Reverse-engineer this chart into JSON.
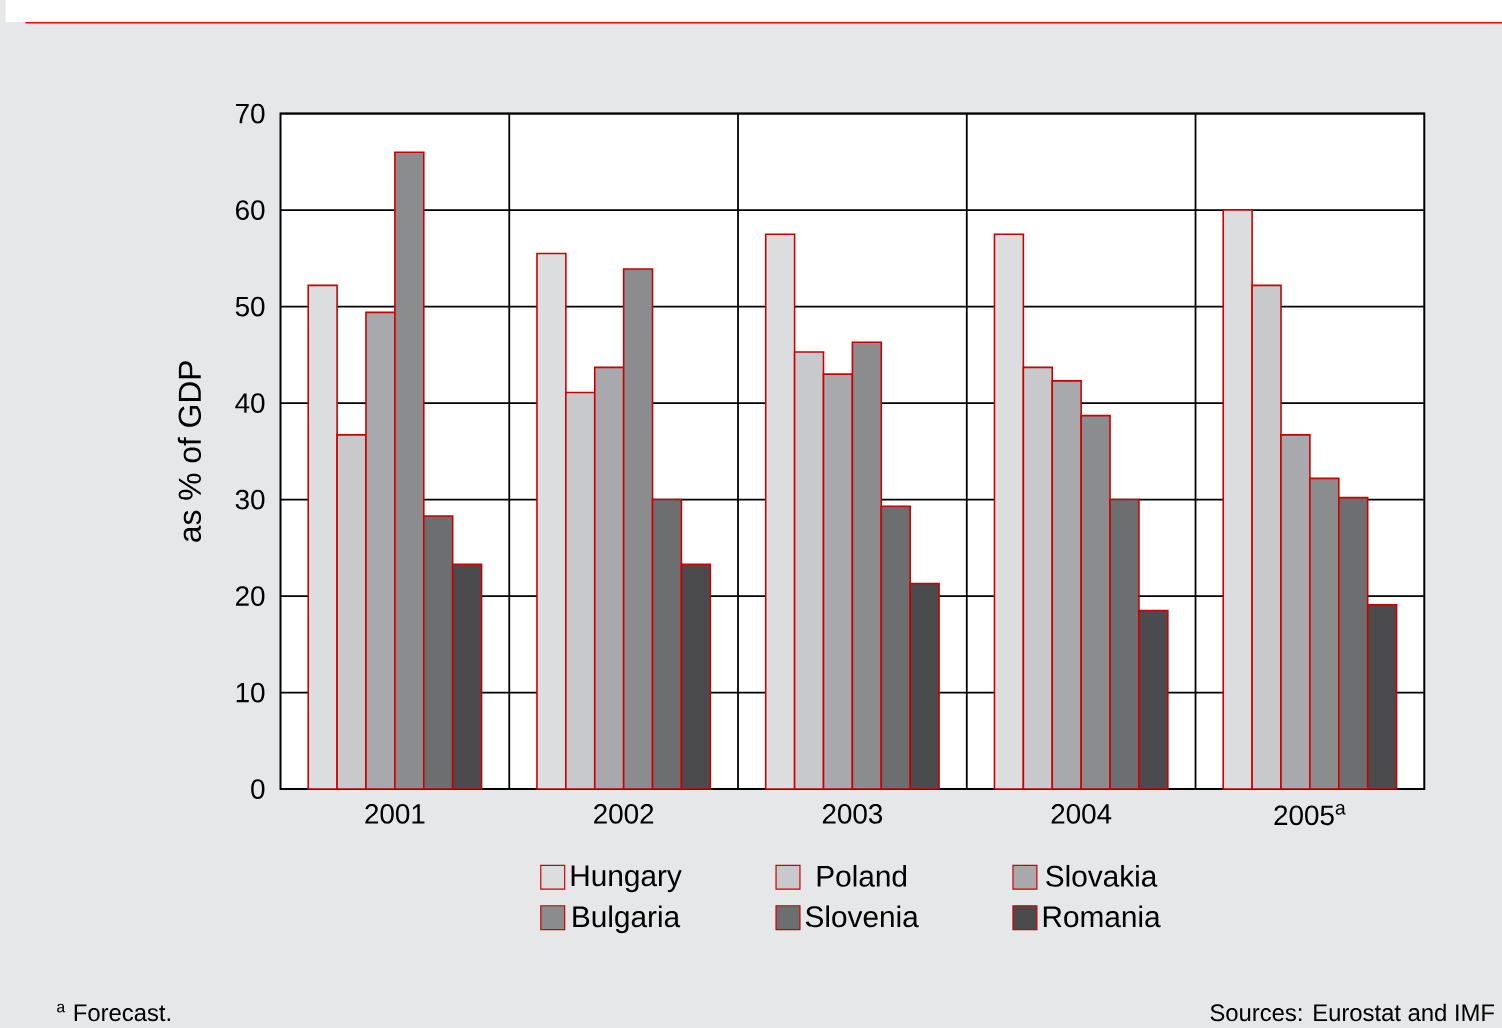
{
  "chart_data": {
    "type": "bar",
    "ylabel": "as % of GDP",
    "categories": [
      "2001",
      "2002",
      "2003",
      "2004",
      "2005$^{a}$"
    ],
    "series": [
      {
        "name": "Hungary",
        "color": "#dcdddf",
        "values": [
          52.2,
          55.5,
          57.5,
          57.5,
          60
        ]
      },
      {
        "name": "Poland",
        "color": "#c8c9cb",
        "values": [
          36.7,
          41.1,
          45.3,
          43.7,
          52.2
        ]
      },
      {
        "name": "Slovakia",
        "color": "#a8a9ac",
        "values": [
          49.4,
          43.7,
          43.0,
          42.3,
          36.7
        ]
      },
      {
        "name": "Bulgaria",
        "color": "#8b8c8e",
        "values": [
          66,
          53.9,
          46.3,
          38.7,
          32.2
        ]
      },
      {
        "name": "Slovenia",
        "color": "#6d6e70",
        "values": [
          28.3,
          30,
          29.3,
          30,
          30.2
        ]
      },
      {
        "name": "Romania",
        "color": "#4b4a4d",
        "values": [
          23.3,
          23.3,
          21.3,
          18.5,
          19.1
        ]
      }
    ],
    "ylim": [
      0,
      70
    ],
    "yticks": [
      0,
      10,
      20,
      30,
      40,
      50,
      60,
      70
    ],
    "grid": true,
    "legend": "bottom",
    "annotations": [
      "$^{a}$ Forecast.",
      "Sources: Eurostat and IMF"
    ]
  }
}
